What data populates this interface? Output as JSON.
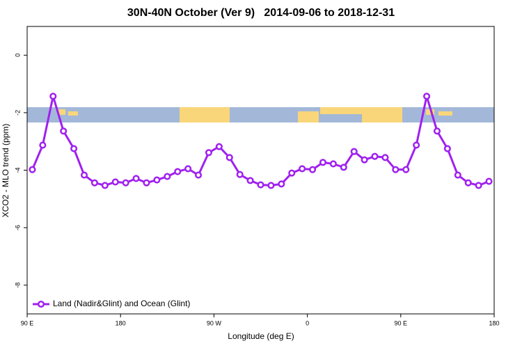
{
  "chart_data": {
    "type": "line",
    "title": "30N-40N October (Ver 9)   2014-09-06 to 2018-12-31",
    "x_label": "Longitude (deg E)",
    "y_label": "XCO2 - MLO trend (ppm)",
    "x": [
      95,
      105,
      115,
      125,
      135,
      145,
      155,
      165,
      175,
      185,
      195,
      205,
      215,
      225,
      235,
      245,
      255,
      265,
      275,
      285,
      295,
      305,
      315,
      325,
      335,
      345,
      355,
      365,
      375,
      385,
      395,
      405,
      415,
      425,
      435,
      445,
      455,
      465,
      475,
      485,
      495,
      505,
      515,
      525,
      535
    ],
    "series": [
      {
        "name": "Land (Nadir&Glint) and Ocean (Glint)",
        "color": "#a020f0",
        "values": [
          -3.98,
          -3.13,
          -1.43,
          -2.64,
          -3.25,
          -4.17,
          -4.44,
          -4.53,
          -4.41,
          -4.44,
          -4.29,
          -4.44,
          -4.34,
          -4.22,
          -4.05,
          -3.95,
          -4.17,
          -3.39,
          -3.18,
          -3.56,
          -4.15,
          -4.36,
          -4.51,
          -4.53,
          -4.48,
          -4.1,
          -3.95,
          -3.98,
          -3.73,
          -3.78,
          -3.9,
          -3.35,
          -3.64,
          -3.52,
          -3.56,
          -3.98,
          -3.98,
          -3.13,
          -1.43,
          -2.64,
          -3.25,
          -4.17,
          -4.44,
          -4.53,
          -4.39
        ]
      }
    ],
    "xlim": [
      90,
      540
    ],
    "xticks": [
      {
        "value": 90,
        "label": "90 E"
      },
      180,
      {
        "value": 270,
        "label": "90 W"
      },
      {
        "value": 360,
        "label": "0"
      },
      {
        "value": 450,
        "label": "90 E"
      },
      {
        "value": 540,
        "label": "180"
      }
    ],
    "ylim": [
      -9,
      1
    ],
    "yticks": [
      0,
      -2,
      -4,
      -6,
      -8
    ],
    "legend": "bottom-left"
  }
}
